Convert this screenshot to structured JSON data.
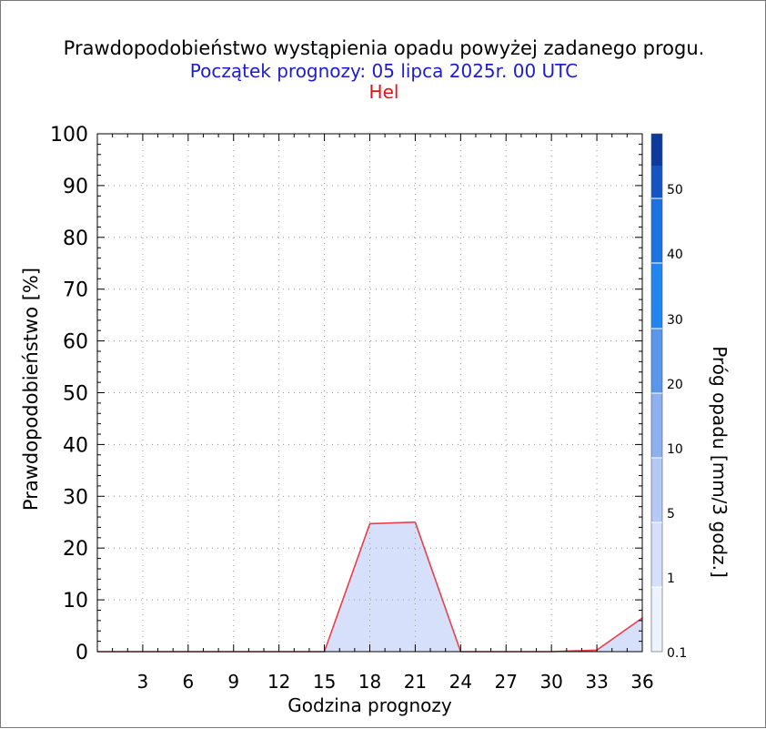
{
  "header": {
    "title": "Prawdopodobieństwo wystąpienia opadu powyżej zadanego progu.",
    "subtitle": "Początek prognozy: 05 lipca 2025r. 00 UTC",
    "station": "Hel"
  },
  "chart_data": {
    "type": "area",
    "xlabel": "Godzina prognozy",
    "ylabel": "Prawdopodobieństwo [%]",
    "xlim": [
      0,
      36
    ],
    "ylim": [
      0,
      100
    ],
    "xticks": [
      "3",
      "6",
      "9",
      "12",
      "15",
      "18",
      "21",
      "24",
      "27",
      "30",
      "33",
      "36"
    ],
    "yticks": [
      "0",
      "10",
      "20",
      "30",
      "40",
      "50",
      "60",
      "70",
      "80",
      "90",
      "100"
    ],
    "grid": true,
    "series": [
      {
        "color": "#e8404a",
        "fill": "#d7e0fa",
        "x": [
          0,
          3,
          6,
          9,
          12,
          15,
          18,
          21,
          24,
          27,
          30,
          33,
          36
        ],
        "y": [
          0,
          0,
          0,
          0,
          0,
          0,
          24.7,
          25.0,
          0,
          0,
          0,
          0.3,
          6.5
        ]
      }
    ],
    "colorbar": {
      "label": "Próg opadu [mm/3 godz.]",
      "ticks": [
        "0.1",
        "1",
        "5",
        "10",
        "20",
        "30",
        "40",
        "50"
      ],
      "colors": [
        "#eef2fd",
        "#d5dff9",
        "#b6c9f4",
        "#8eb0ee",
        "#5a96ea",
        "#1f86f0",
        "#1c72e0",
        "#1555c2",
        "#0c3a9c"
      ]
    }
  }
}
